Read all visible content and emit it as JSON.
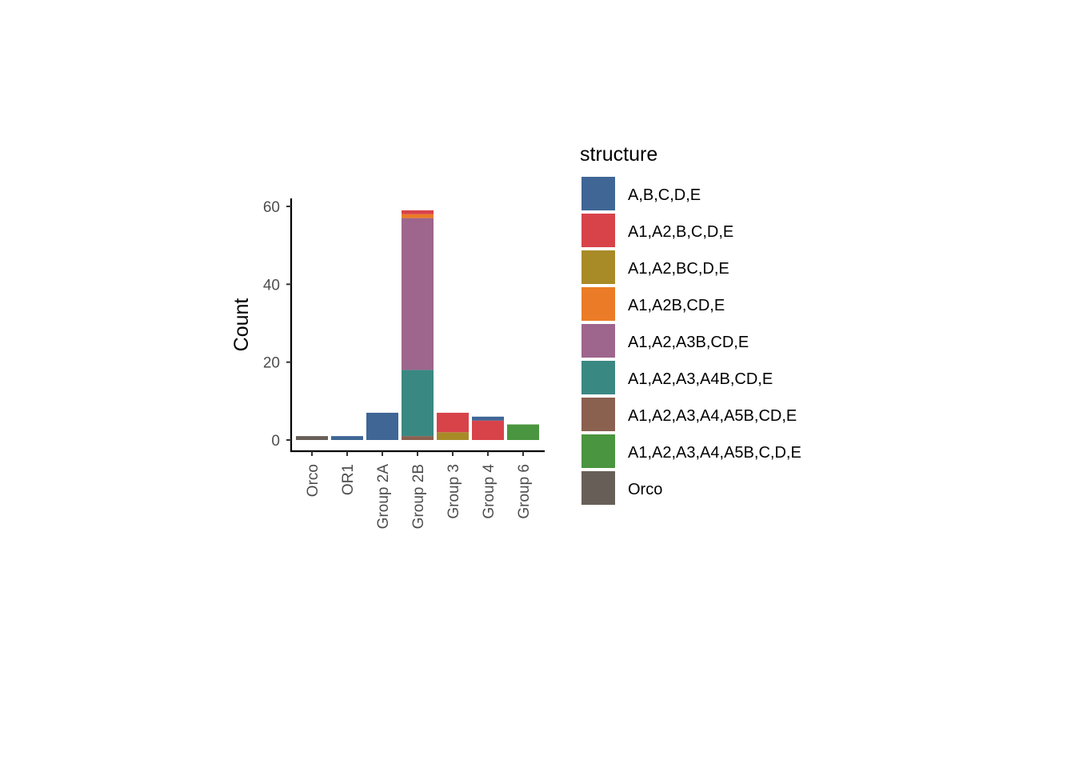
{
  "chart_data": {
    "type": "bar",
    "stacked": true,
    "categories": [
      "Orco",
      "OR1",
      "Group 2A",
      "Group 2B",
      "Group 3",
      "Group 4",
      "Group 6"
    ],
    "ylabel": "Count",
    "xlabel": "",
    "ylim": [
      0,
      62
    ],
    "yticks": [
      0,
      20,
      40,
      60
    ],
    "ytick_labels": [
      "0",
      "20",
      "40",
      "60"
    ],
    "grid": false,
    "legend": {
      "title": "structure",
      "position": "right"
    },
    "series": [
      {
        "name": "A,B,C,D,E",
        "color": "#3F6695",
        "values": [
          0,
          1,
          7,
          0,
          0,
          1,
          0
        ]
      },
      {
        "name": "A1,A2,B,C,D,E",
        "color": "#D8434A",
        "values": [
          0,
          0,
          0,
          1,
          5,
          5,
          0
        ]
      },
      {
        "name": "A1,A2,BC,D,E",
        "color": "#A88B27",
        "values": [
          0,
          0,
          0,
          0,
          2,
          0,
          0
        ]
      },
      {
        "name": "A1,A2B,CD,E",
        "color": "#EB7B26",
        "values": [
          0,
          0,
          0,
          1,
          0,
          0,
          0
        ]
      },
      {
        "name": "A1,A2,A3B,CD,E",
        "color": "#9E658D",
        "values": [
          0,
          0,
          0,
          39,
          0,
          0,
          0
        ]
      },
      {
        "name": "A1,A2,A3,A4B,CD,E",
        "color": "#3A8882",
        "values": [
          0,
          0,
          0,
          17,
          0,
          0,
          0
        ]
      },
      {
        "name": "A1,A2,A3,A4,A5B,CD,E",
        "color": "#8A604F",
        "values": [
          0,
          0,
          0,
          1,
          0,
          0,
          0
        ]
      },
      {
        "name": "A1,A2,A3,A4,A5B,C,D,E",
        "color": "#4A953F",
        "values": [
          0,
          0,
          0,
          0,
          0,
          0,
          4
        ]
      },
      {
        "name": "Orco",
        "color": "#675F57",
        "values": [
          1,
          0,
          0,
          0,
          0,
          0,
          0
        ]
      }
    ]
  }
}
